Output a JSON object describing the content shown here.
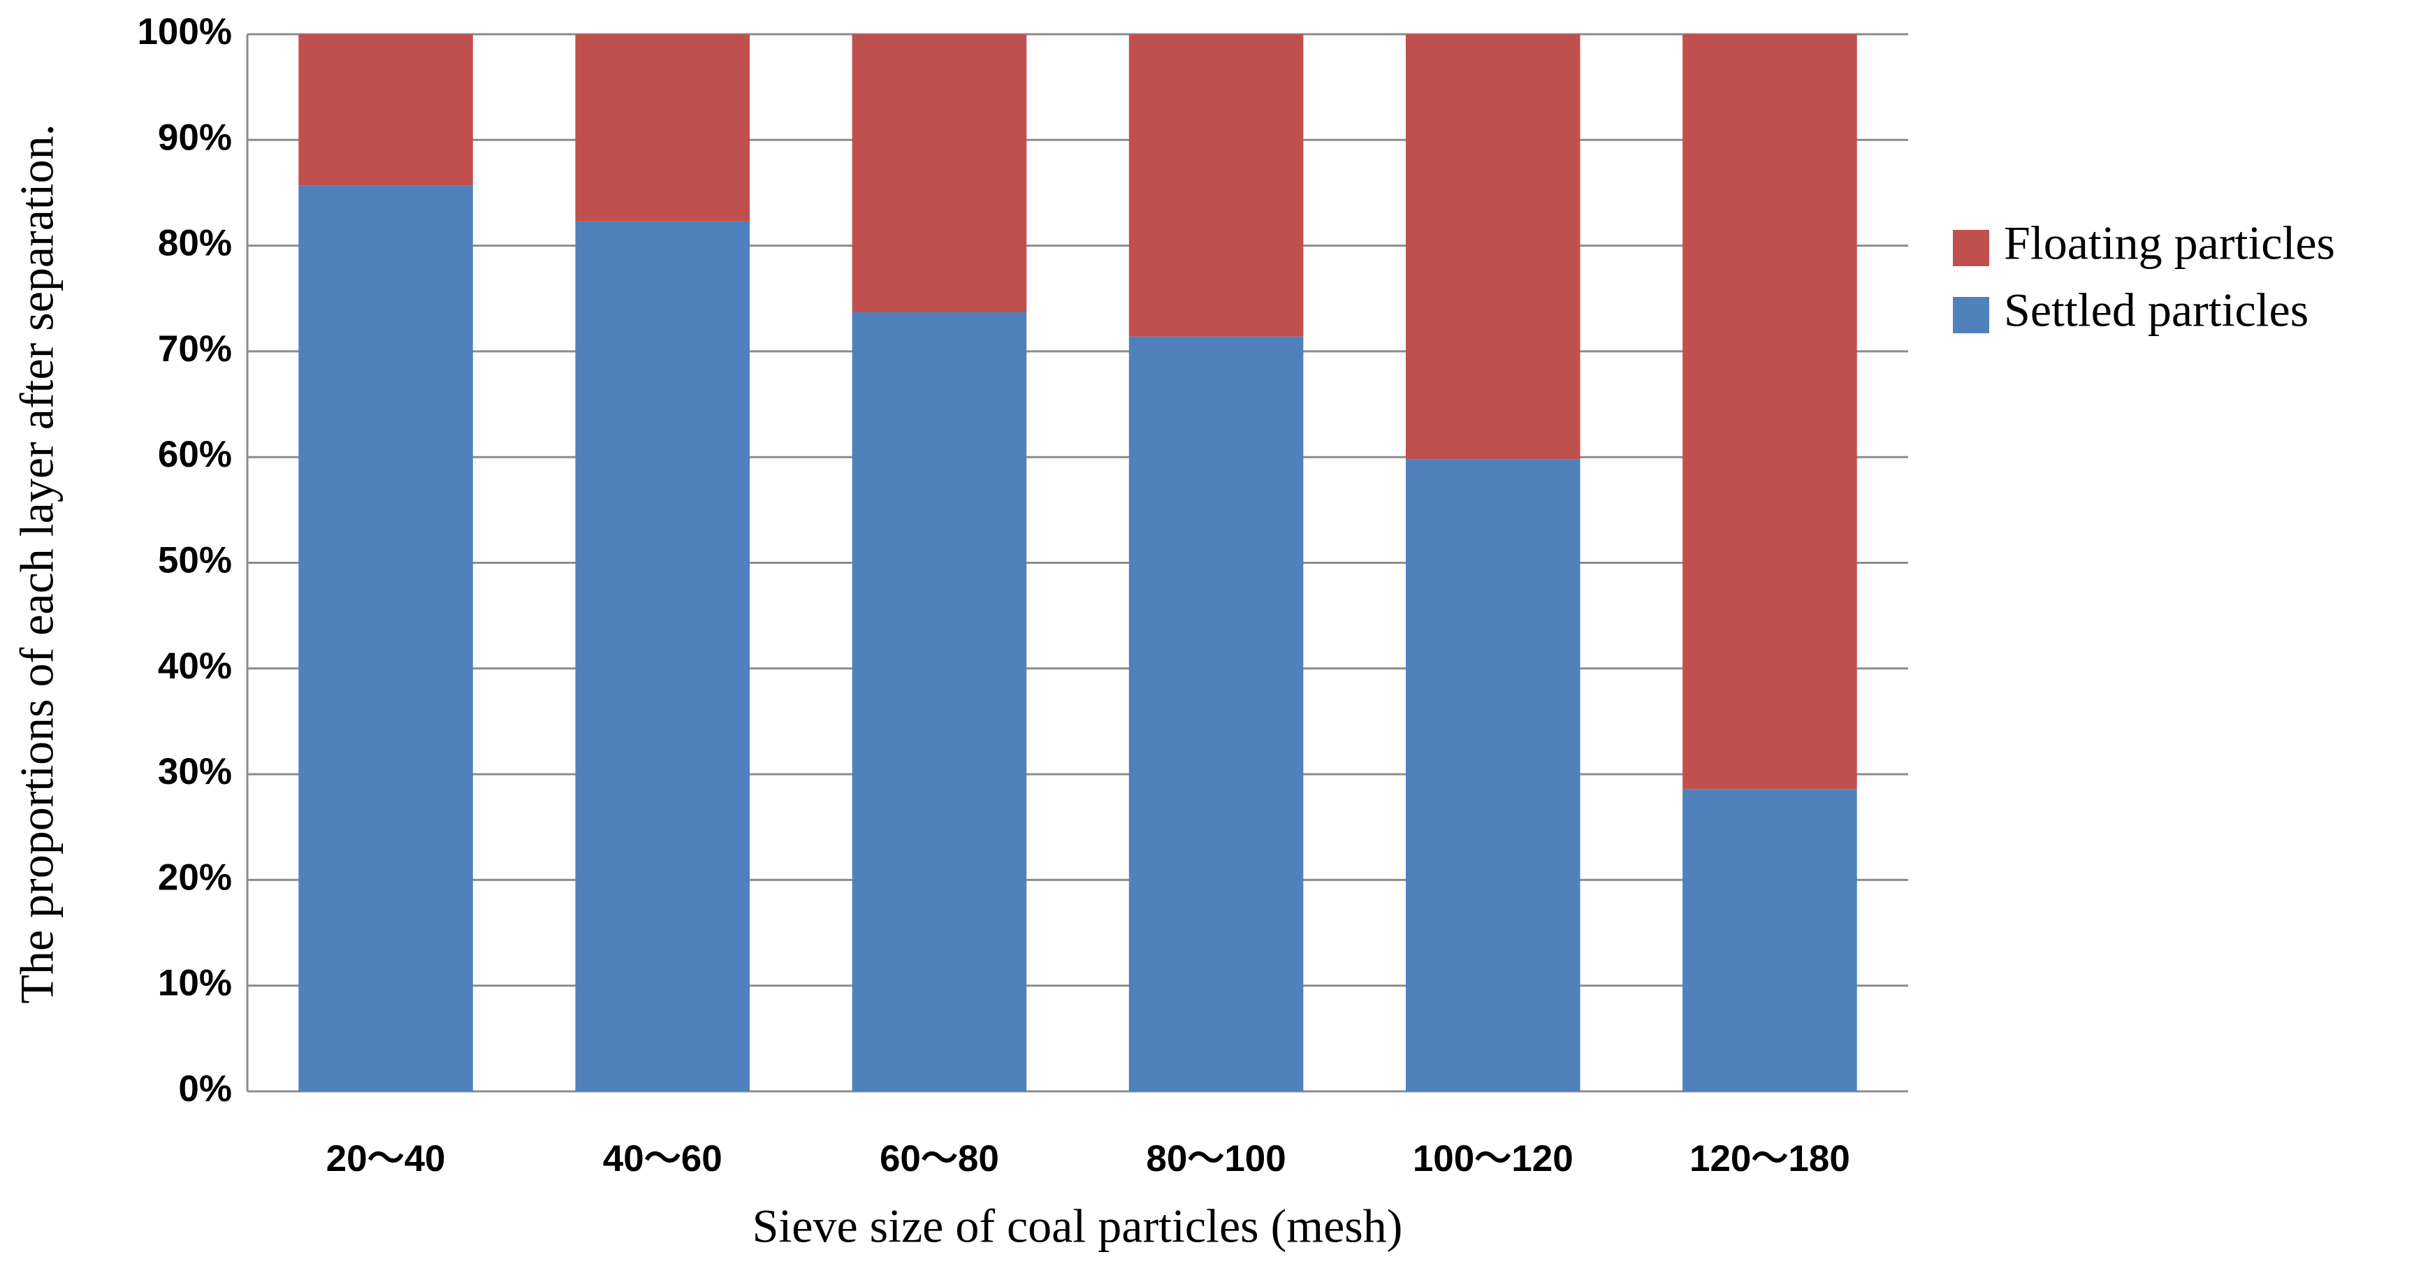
{
  "chart_data": {
    "type": "stacked_bar",
    "categories": [
      "20～40",
      "40～60",
      "60～80",
      "80～100",
      "100～120",
      "120～180"
    ],
    "series": [
      {
        "name": "Settled particles",
        "color": "#4f81bd",
        "values": [
          85.7,
          82.3,
          73.7,
          71.4,
          59.8,
          28.6
        ]
      },
      {
        "name": "Floating particles",
        "color": "#c0504d",
        "values": [
          14.3,
          17.7,
          26.3,
          28.6,
          40.2,
          71.4
        ]
      }
    ],
    "x_label": "Sieve size of coal particles (mesh)",
    "y_label": "The proportions of each layer after separation.",
    "ylim": [
      0,
      100
    ],
    "yticks": [
      {
        "value": 0,
        "label": "0%"
      },
      {
        "value": 10,
        "label": "10%"
      },
      {
        "value": 20,
        "label": "20%"
      },
      {
        "value": 30,
        "label": "30%"
      },
      {
        "value": 40,
        "label": "40%"
      },
      {
        "value": 50,
        "label": "50%"
      },
      {
        "value": 60,
        "label": "60%"
      },
      {
        "value": 70,
        "label": "70%"
      },
      {
        "value": 80,
        "label": "80%"
      },
      {
        "value": 90,
        "label": "90%"
      },
      {
        "value": 100,
        "label": "100%"
      }
    ],
    "grid": true,
    "legend": "right"
  }
}
